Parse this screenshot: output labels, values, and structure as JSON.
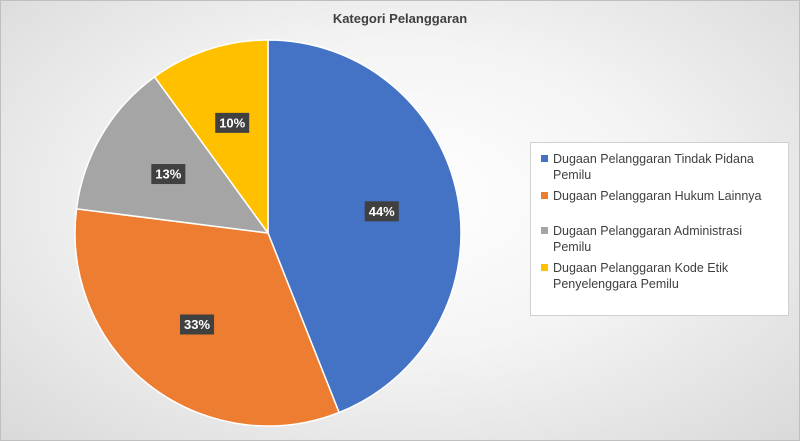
{
  "chart_data": {
    "type": "pie",
    "title": "Kategori Pelanggaran",
    "categories": [
      "Dugaan Pelanggaran Tindak Pidana Pemilu",
      "Dugaan Pelanggaran Hukum Lainnya",
      "Dugaan Pelanggaran Administrasi Pemilu",
      "Dugaan Pelanggaran Kode Etik Penyelenggara Pemilu"
    ],
    "values": [
      44,
      33,
      13,
      10
    ],
    "data_labels": [
      "44%",
      "33%",
      "13%",
      "10%"
    ],
    "colors": [
      "#4472C4",
      "#ED7D31",
      "#A5A5A5",
      "#FFC000"
    ],
    "legend_placement": "right"
  }
}
